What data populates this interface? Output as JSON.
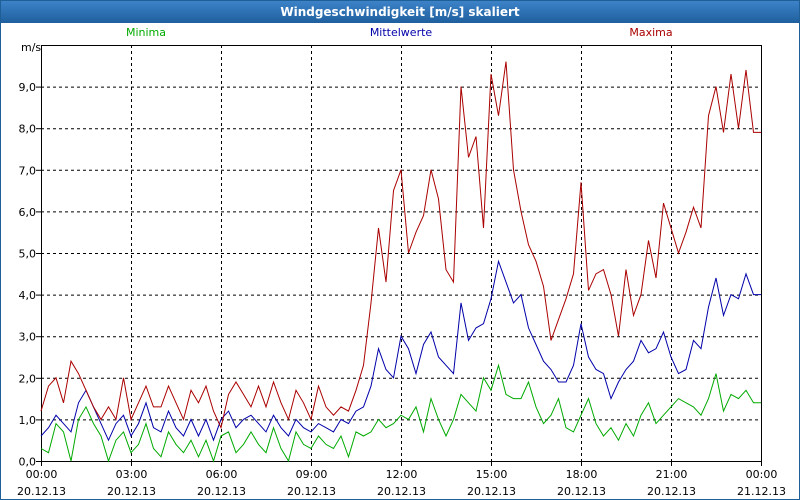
{
  "chart_data": {
    "type": "line",
    "title": "Windgeschwindigkeit [m/s] skaliert",
    "ylabel": "m/s",
    "xlabel": "",
    "ylim": [
      0,
      10
    ],
    "xlim": [
      0,
      24
    ],
    "grid": true,
    "yticks": [
      {
        "v": 0,
        "label": "0,0"
      },
      {
        "v": 1,
        "label": "1,0"
      },
      {
        "v": 2,
        "label": "2,0"
      },
      {
        "v": 3,
        "label": "3,0"
      },
      {
        "v": 4,
        "label": "4,0"
      },
      {
        "v": 5,
        "label": "5,0"
      },
      {
        "v": 6,
        "label": "6,0"
      },
      {
        "v": 7,
        "label": "7,0"
      },
      {
        "v": 8,
        "label": "8,0"
      },
      {
        "v": 9,
        "label": "9,0"
      }
    ],
    "xticks": [
      {
        "h": 0,
        "time": "00:00",
        "date": "20.12.13"
      },
      {
        "h": 3,
        "time": "03:00",
        "date": "20.12.13"
      },
      {
        "h": 6,
        "time": "06:00",
        "date": "20.12.13"
      },
      {
        "h": 9,
        "time": "09:00",
        "date": "20.12.13"
      },
      {
        "h": 12,
        "time": "12:00",
        "date": "20.12.13"
      },
      {
        "h": 15,
        "time": "15:00",
        "date": "20.12.13"
      },
      {
        "h": 18,
        "time": "18:00",
        "date": "20.12.13"
      },
      {
        "h": 21,
        "time": "21:00",
        "date": "20.12.13"
      },
      {
        "h": 24,
        "time": "00:00",
        "date": "21.12.13"
      }
    ],
    "legend": [
      "Minima",
      "Mittelwerte",
      "Maxima"
    ],
    "series": [
      {
        "name": "Minima",
        "color": "#00aa00",
        "points": [
          [
            0,
            0.3
          ],
          [
            0.25,
            0.2
          ],
          [
            0.5,
            0.9
          ],
          [
            0.75,
            0.7
          ],
          [
            1,
            0
          ],
          [
            1.25,
            1.0
          ],
          [
            1.5,
            1.3
          ],
          [
            1.75,
            0.9
          ],
          [
            2,
            0.6
          ],
          [
            2.25,
            0
          ],
          [
            2.5,
            0.5
          ],
          [
            2.75,
            0.7
          ],
          [
            3,
            0.2
          ],
          [
            3.25,
            0.4
          ],
          [
            3.5,
            0.9
          ],
          [
            3.75,
            0.3
          ],
          [
            4,
            0.1
          ],
          [
            4.25,
            0.7
          ],
          [
            4.5,
            0.4
          ],
          [
            4.75,
            0.2
          ],
          [
            5,
            0.5
          ],
          [
            5.25,
            0.1
          ],
          [
            5.5,
            0.5
          ],
          [
            5.75,
            0
          ],
          [
            6,
            0.6
          ],
          [
            6.25,
            0.7
          ],
          [
            6.5,
            0.2
          ],
          [
            6.75,
            0.4
          ],
          [
            7,
            0.7
          ],
          [
            7.25,
            0.4
          ],
          [
            7.5,
            0.2
          ],
          [
            7.75,
            0.8
          ],
          [
            8,
            0.3
          ],
          [
            8.25,
            0
          ],
          [
            8.5,
            0.7
          ],
          [
            8.75,
            0.4
          ],
          [
            9,
            0.3
          ],
          [
            9.25,
            0.6
          ],
          [
            9.5,
            0.4
          ],
          [
            9.75,
            0.3
          ],
          [
            10,
            0.6
          ],
          [
            10.25,
            0.1
          ],
          [
            10.5,
            0.7
          ],
          [
            10.75,
            0.6
          ],
          [
            11,
            0.7
          ],
          [
            11.25,
            1.0
          ],
          [
            11.5,
            0.8
          ],
          [
            11.75,
            0.9
          ],
          [
            12,
            1.1
          ],
          [
            12.25,
            1.0
          ],
          [
            12.5,
            1.3
          ],
          [
            12.75,
            0.7
          ],
          [
            13,
            1.5
          ],
          [
            13.25,
            1.0
          ],
          [
            13.5,
            0.6
          ],
          [
            13.75,
            1.0
          ],
          [
            14,
            1.6
          ],
          [
            14.25,
            1.4
          ],
          [
            14.5,
            1.2
          ],
          [
            14.75,
            2.0
          ],
          [
            15,
            1.7
          ],
          [
            15.25,
            2.3
          ],
          [
            15.5,
            1.6
          ],
          [
            15.75,
            1.5
          ],
          [
            16,
            1.5
          ],
          [
            16.25,
            1.9
          ],
          [
            16.5,
            1.3
          ],
          [
            16.75,
            0.9
          ],
          [
            17,
            1.1
          ],
          [
            17.25,
            1.5
          ],
          [
            17.5,
            0.8
          ],
          [
            17.75,
            0.7
          ],
          [
            18,
            1.1
          ],
          [
            18.25,
            1.5
          ],
          [
            18.5,
            0.9
          ],
          [
            18.75,
            0.6
          ],
          [
            19,
            0.8
          ],
          [
            19.25,
            0.5
          ],
          [
            19.5,
            0.9
          ],
          [
            19.75,
            0.6
          ],
          [
            20,
            1.1
          ],
          [
            20.25,
            1.4
          ],
          [
            20.5,
            0.9
          ],
          [
            20.75,
            1.1
          ],
          [
            21,
            1.3
          ],
          [
            21.25,
            1.5
          ],
          [
            21.5,
            1.4
          ],
          [
            21.75,
            1.3
          ],
          [
            22,
            1.1
          ],
          [
            22.25,
            1.5
          ],
          [
            22.5,
            2.1
          ],
          [
            22.75,
            1.2
          ],
          [
            23,
            1.6
          ],
          [
            23.25,
            1.5
          ],
          [
            23.5,
            1.7
          ],
          [
            23.75,
            1.4
          ],
          [
            24,
            1.4
          ]
        ]
      },
      {
        "name": "Mittelwerte",
        "color": "#0000aa",
        "points": [
          [
            0,
            0.6
          ],
          [
            0.25,
            0.8
          ],
          [
            0.5,
            1.1
          ],
          [
            0.75,
            0.9
          ],
          [
            1,
            0.7
          ],
          [
            1.25,
            1.4
          ],
          [
            1.5,
            1.7
          ],
          [
            1.75,
            1.3
          ],
          [
            2,
            0.9
          ],
          [
            2.25,
            0.5
          ],
          [
            2.5,
            0.9
          ],
          [
            2.75,
            1.1
          ],
          [
            3,
            0.6
          ],
          [
            3.25,
            0.9
          ],
          [
            3.5,
            1.4
          ],
          [
            3.75,
            0.8
          ],
          [
            4,
            0.7
          ],
          [
            4.25,
            1.2
          ],
          [
            4.5,
            0.8
          ],
          [
            4.75,
            0.6
          ],
          [
            5,
            1.0
          ],
          [
            5.25,
            0.6
          ],
          [
            5.5,
            1.0
          ],
          [
            5.75,
            0.5
          ],
          [
            6,
            1.0
          ],
          [
            6.25,
            1.2
          ],
          [
            6.5,
            0.8
          ],
          [
            6.75,
            1.0
          ],
          [
            7,
            1.1
          ],
          [
            7.25,
            0.9
          ],
          [
            7.5,
            0.7
          ],
          [
            7.75,
            1.1
          ],
          [
            8,
            0.8
          ],
          [
            8.25,
            0.6
          ],
          [
            8.5,
            1.0
          ],
          [
            8.75,
            0.8
          ],
          [
            9,
            0.7
          ],
          [
            9.25,
            0.9
          ],
          [
            9.5,
            0.8
          ],
          [
            9.75,
            0.7
          ],
          [
            10,
            1.0
          ],
          [
            10.25,
            0.9
          ],
          [
            10.5,
            1.2
          ],
          [
            10.75,
            1.3
          ],
          [
            11,
            1.8
          ],
          [
            11.25,
            2.7
          ],
          [
            11.5,
            2.2
          ],
          [
            11.75,
            2.0
          ],
          [
            12,
            3.0
          ],
          [
            12.25,
            2.7
          ],
          [
            12.5,
            2.1
          ],
          [
            12.75,
            2.8
          ],
          [
            13,
            3.1
          ],
          [
            13.25,
            2.5
          ],
          [
            13.5,
            2.3
          ],
          [
            13.75,
            2.1
          ],
          [
            14,
            3.8
          ],
          [
            14.25,
            2.9
          ],
          [
            14.5,
            3.2
          ],
          [
            14.75,
            3.3
          ],
          [
            15,
            3.9
          ],
          [
            15.25,
            4.8
          ],
          [
            15.5,
            4.3
          ],
          [
            15.75,
            3.8
          ],
          [
            16,
            4.0
          ],
          [
            16.25,
            3.2
          ],
          [
            16.5,
            2.8
          ],
          [
            16.75,
            2.4
          ],
          [
            17,
            2.2
          ],
          [
            17.25,
            1.9
          ],
          [
            17.5,
            1.9
          ],
          [
            17.75,
            2.3
          ],
          [
            18,
            3.3
          ],
          [
            18.25,
            2.5
          ],
          [
            18.5,
            2.2
          ],
          [
            18.75,
            2.1
          ],
          [
            19,
            1.5
          ],
          [
            19.25,
            1.9
          ],
          [
            19.5,
            2.2
          ],
          [
            19.75,
            2.4
          ],
          [
            20,
            2.9
          ],
          [
            20.25,
            2.6
          ],
          [
            20.5,
            2.7
          ],
          [
            20.75,
            3.1
          ],
          [
            21,
            2.5
          ],
          [
            21.25,
            2.1
          ],
          [
            21.5,
            2.2
          ],
          [
            21.75,
            2.9
          ],
          [
            22,
            2.7
          ],
          [
            22.25,
            3.7
          ],
          [
            22.5,
            4.4
          ],
          [
            22.75,
            3.5
          ],
          [
            23,
            4.0
          ],
          [
            23.25,
            3.9
          ],
          [
            23.5,
            4.5
          ],
          [
            23.75,
            4.0
          ],
          [
            24,
            4.0
          ]
        ]
      },
      {
        "name": "Maxima",
        "color": "#aa0000",
        "points": [
          [
            0,
            1.2
          ],
          [
            0.25,
            1.8
          ],
          [
            0.5,
            2.0
          ],
          [
            0.75,
            1.4
          ],
          [
            1,
            2.4
          ],
          [
            1.25,
            2.1
          ],
          [
            1.5,
            1.7
          ],
          [
            1.75,
            1.3
          ],
          [
            2,
            1.0
          ],
          [
            2.25,
            1.3
          ],
          [
            2.5,
            1.0
          ],
          [
            2.75,
            2.0
          ],
          [
            3,
            1.0
          ],
          [
            3.25,
            1.4
          ],
          [
            3.5,
            1.8
          ],
          [
            3.75,
            1.3
          ],
          [
            4,
            1.3
          ],
          [
            4.25,
            1.8
          ],
          [
            4.5,
            1.4
          ],
          [
            4.75,
            1.0
          ],
          [
            5,
            1.7
          ],
          [
            5.25,
            1.4
          ],
          [
            5.5,
            1.8
          ],
          [
            5.75,
            1.2
          ],
          [
            6,
            0.8
          ],
          [
            6.25,
            1.6
          ],
          [
            6.5,
            1.9
          ],
          [
            6.75,
            1.6
          ],
          [
            7,
            1.3
          ],
          [
            7.25,
            1.8
          ],
          [
            7.5,
            1.3
          ],
          [
            7.75,
            1.9
          ],
          [
            8,
            1.4
          ],
          [
            8.25,
            1.0
          ],
          [
            8.5,
            1.7
          ],
          [
            8.75,
            1.4
          ],
          [
            9,
            1.0
          ],
          [
            9.25,
            1.8
          ],
          [
            9.5,
            1.3
          ],
          [
            9.75,
            1.1
          ],
          [
            10,
            1.3
          ],
          [
            10.25,
            1.2
          ],
          [
            10.5,
            1.7
          ],
          [
            10.75,
            2.3
          ],
          [
            11,
            3.8
          ],
          [
            11.25,
            5.6
          ],
          [
            11.5,
            4.3
          ],
          [
            11.75,
            6.5
          ],
          [
            12,
            7.0
          ],
          [
            12.25,
            5.0
          ],
          [
            12.5,
            5.5
          ],
          [
            12.75,
            5.9
          ],
          [
            13,
            7.0
          ],
          [
            13.25,
            6.3
          ],
          [
            13.5,
            4.6
          ],
          [
            13.75,
            4.3
          ],
          [
            14,
            9.0
          ],
          [
            14.25,
            7.3
          ],
          [
            14.5,
            7.8
          ],
          [
            14.75,
            5.6
          ],
          [
            15,
            9.3
          ],
          [
            15.25,
            8.3
          ],
          [
            15.5,
            9.6
          ],
          [
            15.75,
            7.0
          ],
          [
            16,
            6.0
          ],
          [
            16.25,
            5.2
          ],
          [
            16.5,
            4.8
          ],
          [
            16.75,
            4.2
          ],
          [
            17,
            2.9
          ],
          [
            17.25,
            3.4
          ],
          [
            17.5,
            3.9
          ],
          [
            17.75,
            4.5
          ],
          [
            18,
            6.7
          ],
          [
            18.25,
            4.1
          ],
          [
            18.5,
            4.5
          ],
          [
            18.75,
            4.6
          ],
          [
            19,
            4.0
          ],
          [
            19.25,
            3.0
          ],
          [
            19.5,
            4.6
          ],
          [
            19.75,
            3.5
          ],
          [
            20,
            4.0
          ],
          [
            20.25,
            5.3
          ],
          [
            20.5,
            4.4
          ],
          [
            20.75,
            6.2
          ],
          [
            21,
            5.6
          ],
          [
            21.25,
            5.0
          ],
          [
            21.5,
            5.5
          ],
          [
            21.75,
            6.1
          ],
          [
            22,
            5.6
          ],
          [
            22.25,
            8.3
          ],
          [
            22.5,
            9.0
          ],
          [
            22.75,
            7.9
          ],
          [
            23,
            9.3
          ],
          [
            23.25,
            8.0
          ],
          [
            23.5,
            9.4
          ],
          [
            23.75,
            7.9
          ],
          [
            24,
            7.9
          ]
        ]
      }
    ]
  }
}
